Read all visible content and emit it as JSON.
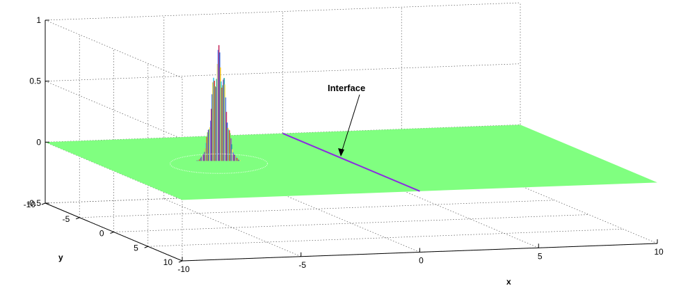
{
  "chart_data": {
    "type": "surface3d",
    "title": "",
    "xlabel": "x",
    "ylabel": "y",
    "zlabel": "",
    "xlim": [
      -10,
      10
    ],
    "ylim": [
      -10,
      10
    ],
    "zlim": [
      -0.5,
      1
    ],
    "x_ticks": [
      "-10",
      "-5",
      "0",
      "5",
      "10"
    ],
    "y_ticks": [
      "-10",
      "-5",
      "0",
      "5",
      "10"
    ],
    "z_ticks": [
      "-0.5",
      "0",
      "0.5",
      "1"
    ],
    "x_tick_values": [
      -10,
      -5,
      0,
      5,
      10
    ],
    "y_tick_values": [
      -10,
      -5,
      0,
      5,
      10
    ],
    "z_tick_values": [
      -0.5,
      0,
      0.5,
      1
    ],
    "grid": true,
    "surface_color": "#80ff80",
    "interface_color": "#8a2be2",
    "interface_line": {
      "x": 0
    },
    "wave_packet": {
      "x_center": -5,
      "y_center": -2,
      "peak_amplitude": 0.95,
      "trough_amplitude": -0.5
    },
    "annotations": [
      {
        "text": "Interface"
      }
    ]
  }
}
